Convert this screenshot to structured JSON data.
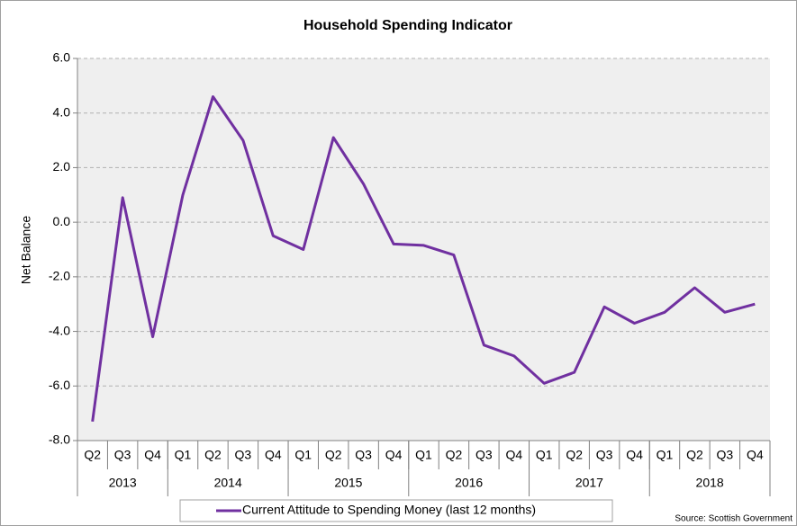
{
  "chart_data": {
    "type": "line",
    "title": "Household Spending Indicator",
    "y_label": "Net Balance",
    "source": "Source: Scottish Government",
    "categories": [
      "Q2",
      "Q3",
      "Q4",
      "Q1",
      "Q2",
      "Q3",
      "Q4",
      "Q1",
      "Q2",
      "Q3",
      "Q4",
      "Q1",
      "Q2",
      "Q3",
      "Q4",
      "Q1",
      "Q2",
      "Q3",
      "Q4",
      "Q1",
      "Q2",
      "Q3",
      "Q4"
    ],
    "category_groups": [
      {
        "label": "2013",
        "span": 3
      },
      {
        "label": "2014",
        "span": 4
      },
      {
        "label": "2015",
        "span": 4
      },
      {
        "label": "2016",
        "span": 4
      },
      {
        "label": "2017",
        "span": 4
      },
      {
        "label": "2018",
        "span": 4
      }
    ],
    "series": [
      {
        "name": "Current Attitude to Spending Money (last 12 months)",
        "color": "#7030a0",
        "values": [
          -7.3,
          0.9,
          -4.2,
          1.0,
          4.6,
          3.0,
          -0.5,
          -1.0,
          3.1,
          1.4,
          -0.8,
          -0.85,
          -1.2,
          -4.5,
          -4.9,
          -5.9,
          -5.5,
          -3.1,
          -3.7,
          -3.3,
          -2.4,
          -3.3,
          -3.0
        ]
      }
    ],
    "ylim": [
      -8,
      6
    ],
    "yticks": [
      {
        "value": -8,
        "label": "-8.0"
      },
      {
        "value": -6,
        "label": "-6.0"
      },
      {
        "value": -4,
        "label": "-4.0"
      },
      {
        "value": -2,
        "label": "-2.0"
      },
      {
        "value": 0,
        "label": "0.0"
      },
      {
        "value": 2,
        "label": "2.0"
      },
      {
        "value": 4,
        "label": "4.0"
      },
      {
        "value": 6,
        "label": "6.0"
      }
    ],
    "grid": true
  }
}
